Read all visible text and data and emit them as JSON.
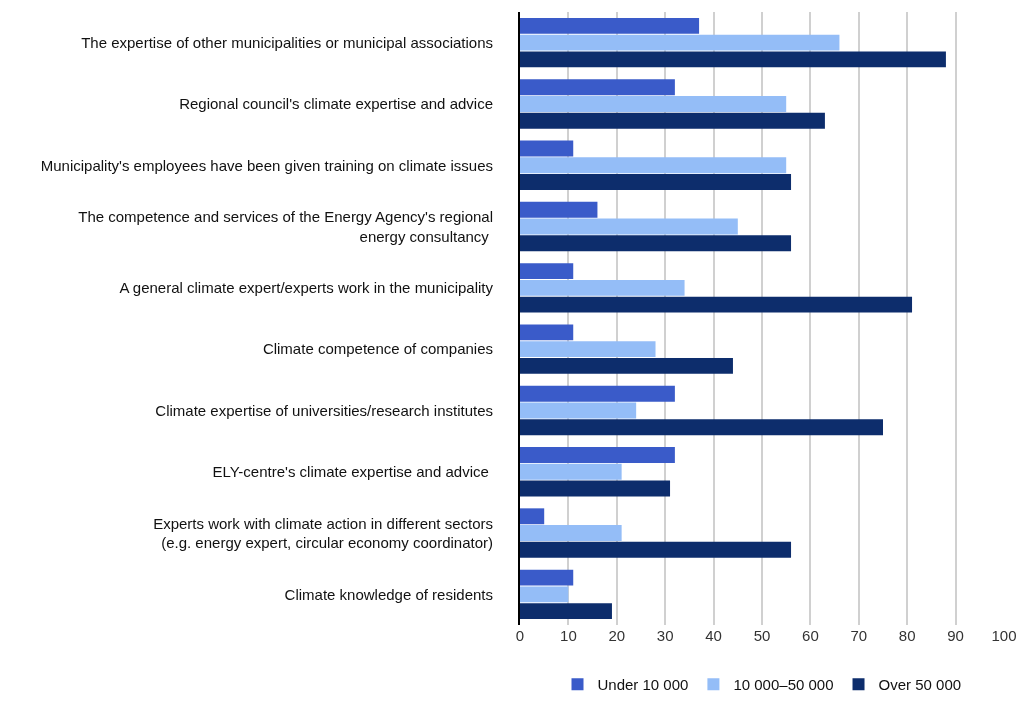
{
  "chart_data": {
    "type": "bar",
    "orientation": "horizontal",
    "categories": [
      "The expertise of other municipalities or municipal associations",
      "Regional council's climate expertise and advice",
      "Municipality's employees have been given training on climate issues",
      "The competence and services of the Energy Agency's regional\nenergy consultancy ",
      "A general climate expert/experts work in the municipality",
      "Climate competence of companies",
      "Climate expertise of universities/research institutes",
      "ELY-centre's climate expertise and advice ",
      "Experts work with climate action in different sectors\n(e.g. energy expert, circular economy coordinator)",
      "Climate knowledge of residents"
    ],
    "series": [
      {
        "name": "Under 10 000",
        "color": "#3a5bc9",
        "values": [
          37,
          32,
          11,
          16,
          11,
          11,
          32,
          32,
          5,
          11
        ]
      },
      {
        "name": "10 000–50 000",
        "color": "#94bdf7",
        "values": [
          66,
          55,
          55,
          45,
          34,
          28,
          24,
          21,
          21,
          10
        ]
      },
      {
        "name": "Over 50 000",
        "color": "#0d2d6c",
        "values": [
          88,
          63,
          56,
          56,
          81,
          44,
          75,
          31,
          56,
          19
        ]
      }
    ],
    "xlim": [
      0,
      100
    ],
    "xticks": [
      0,
      10,
      20,
      30,
      40,
      50,
      60,
      70,
      80,
      90,
      100
    ],
    "grid": "x",
    "legend": "bottom"
  }
}
